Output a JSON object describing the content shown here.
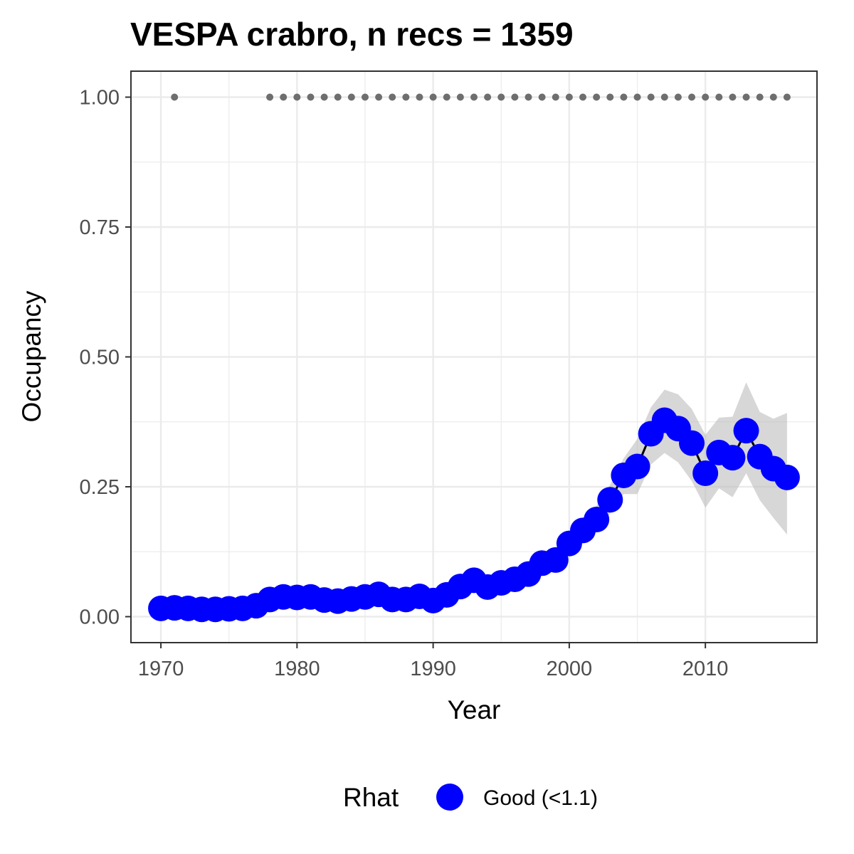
{
  "chart_data": {
    "type": "line",
    "title": "VESPA crabro, n recs = 1359",
    "xlabel": "Year",
    "ylabel": "Occupancy",
    "xlim": [
      1967.8,
      2018.2
    ],
    "ylim": [
      -0.05,
      1.05
    ],
    "x_ticks": [
      1970,
      1980,
      1990,
      2000,
      2010
    ],
    "x_tick_labels": [
      "1970",
      "1980",
      "1990",
      "2000",
      "2010"
    ],
    "y_ticks": [
      0,
      0.25,
      0.5,
      0.75,
      1.0
    ],
    "y_tick_labels": [
      "0.00",
      "0.25",
      "0.50",
      "0.75",
      "1.00"
    ],
    "grid": true,
    "legend_position": "bottom",
    "legend_title": "Rhat",
    "colors": {
      "point": "#0000ff",
      "line": "#000000",
      "ribbon": "#bdbdbd",
      "record_dots": "#6e6e6e",
      "grid": "#ebebeb",
      "border": "#333333"
    },
    "series": [
      {
        "name": "Good (<1.1)",
        "x": [
          1970,
          1971,
          1972,
          1973,
          1974,
          1975,
          1976,
          1977,
          1978,
          1979,
          1980,
          1981,
          1982,
          1983,
          1984,
          1985,
          1986,
          1987,
          1988,
          1989,
          1990,
          1991,
          1992,
          1993,
          1994,
          1995,
          1996,
          1997,
          1998,
          1999,
          2000,
          2001,
          2002,
          2003,
          2004,
          2005,
          2006,
          2007,
          2008,
          2009,
          2010,
          2011,
          2012,
          2013,
          2014,
          2015,
          2016
        ],
        "y": [
          0.016,
          0.017,
          0.016,
          0.014,
          0.014,
          0.015,
          0.016,
          0.021,
          0.033,
          0.038,
          0.037,
          0.038,
          0.032,
          0.03,
          0.034,
          0.038,
          0.043,
          0.033,
          0.033,
          0.039,
          0.031,
          0.042,
          0.058,
          0.07,
          0.057,
          0.065,
          0.072,
          0.082,
          0.103,
          0.109,
          0.141,
          0.166,
          0.187,
          0.225,
          0.272,
          0.289,
          0.352,
          0.378,
          0.362,
          0.334,
          0.276,
          0.316,
          0.306,
          0.358,
          0.308,
          0.285,
          0.268
        ],
        "lower": [
          0.008,
          0.009,
          0.009,
          0.008,
          0.008,
          0.009,
          0.009,
          0.013,
          0.023,
          0.028,
          0.028,
          0.028,
          0.023,
          0.021,
          0.025,
          0.028,
          0.032,
          0.024,
          0.024,
          0.029,
          0.022,
          0.031,
          0.045,
          0.055,
          0.044,
          0.051,
          0.058,
          0.067,
          0.086,
          0.092,
          0.122,
          0.145,
          0.165,
          0.198,
          0.236,
          0.236,
          0.293,
          0.315,
          0.297,
          0.261,
          0.21,
          0.247,
          0.23,
          0.276,
          0.224,
          0.19,
          0.158
        ],
        "upper": [
          0.026,
          0.027,
          0.025,
          0.023,
          0.023,
          0.024,
          0.025,
          0.031,
          0.045,
          0.05,
          0.048,
          0.05,
          0.043,
          0.041,
          0.046,
          0.05,
          0.056,
          0.044,
          0.044,
          0.051,
          0.042,
          0.055,
          0.073,
          0.087,
          0.072,
          0.081,
          0.089,
          0.099,
          0.122,
          0.128,
          0.162,
          0.19,
          0.213,
          0.254,
          0.305,
          0.342,
          0.403,
          0.437,
          0.428,
          0.4,
          0.35,
          0.383,
          0.385,
          0.451,
          0.394,
          0.381,
          0.392
        ]
      }
    ],
    "records": {
      "x": [
        1971,
        1978,
        1979,
        1980,
        1981,
        1982,
        1983,
        1984,
        1985,
        1986,
        1987,
        1988,
        1989,
        1990,
        1991,
        1992,
        1993,
        1994,
        1995,
        1996,
        1997,
        1998,
        1999,
        2000,
        2001,
        2002,
        2003,
        2004,
        2005,
        2006,
        2007,
        2008,
        2009,
        2010,
        2011,
        2012,
        2013,
        2014,
        2015,
        2016
      ],
      "y": 1.0
    }
  }
}
